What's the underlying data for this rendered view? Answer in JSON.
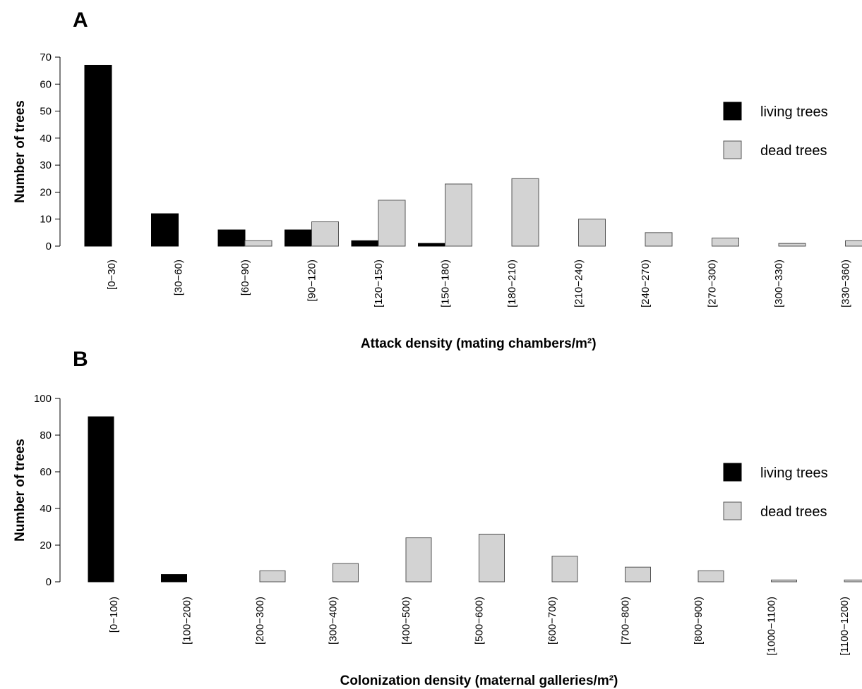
{
  "chart_data": [
    {
      "type": "bar",
      "panel_label": "A",
      "xlabel": "Attack density (mating chambers/m²)",
      "ylabel": "Number of trees",
      "ylim": [
        0,
        70
      ],
      "yticks": [
        "0",
        "10",
        "20",
        "30",
        "40",
        "50",
        "60",
        "70"
      ],
      "categories": [
        "[0−30)",
        "[30−60)",
        "[60−90)",
        "[90−120)",
        "[120−150)",
        "[150−180)",
        "[180−210)",
        "[210−240)",
        "[240−270)",
        "[270−300)",
        "[300−330)",
        "[330−360)"
      ],
      "series": [
        {
          "name": "living trees",
          "color": "#000000",
          "values": [
            67,
            12,
            6,
            6,
            2,
            1,
            0,
            0,
            0,
            0,
            0,
            0
          ]
        },
        {
          "name": "dead trees",
          "color": "#d3d3d3",
          "values": [
            0,
            0,
            2,
            9,
            17,
            23,
            25,
            10,
            5,
            3,
            1,
            2
          ]
        }
      ],
      "legend_position": "right"
    },
    {
      "type": "bar",
      "panel_label": "B",
      "xlabel": "Colonization density (maternal galleries/m²)",
      "ylabel": "Number of trees",
      "ylim": [
        0,
        100
      ],
      "yticks": [
        "0",
        "20",
        "40",
        "60",
        "80",
        "100"
      ],
      "categories": [
        "[0−100)",
        "[100−200)",
        "[200−300)",
        "[300−400)",
        "[400−500)",
        "[500−600)",
        "[600−700)",
        "[700−800)",
        "[800−900)",
        "[1000−1100)",
        "[1100−1200)"
      ],
      "series": [
        {
          "name": "living trees",
          "color": "#000000",
          "values": [
            90,
            4,
            0,
            0,
            0,
            0,
            0,
            0,
            0,
            0,
            0
          ]
        },
        {
          "name": "dead trees",
          "color": "#d3d3d3",
          "values": [
            0,
            0,
            6,
            10,
            24,
            26,
            14,
            8,
            6,
            1,
            1
          ]
        }
      ],
      "legend_position": "right"
    }
  ]
}
